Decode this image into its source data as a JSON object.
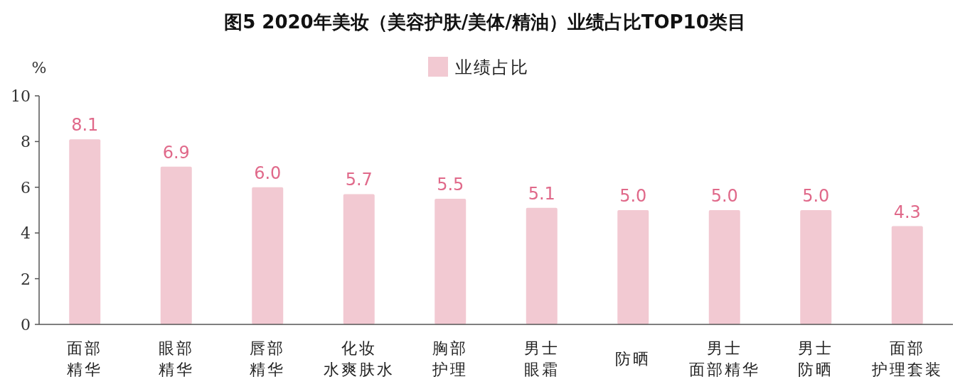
{
  "chart_data": {
    "type": "bar",
    "title": "图5 2020年美妆（美容护肤/美体/精油）业绩占比TOP10类目",
    "ylabel": "%",
    "categories": [
      "面部精华",
      "眼部精华",
      "唇部精华",
      "化妆水爽肤水",
      "胸部护理",
      "男士眼霜",
      "防晒",
      "男士面部精华",
      "男士防晒",
      "面部护理套装"
    ],
    "series": [
      {
        "name": "业绩占比",
        "color": "#f2c9d2",
        "values": [
          8.1,
          6.9,
          6.0,
          5.7,
          5.5,
          5.1,
          5.0,
          5.0,
          5.0,
          4.3
        ]
      }
    ],
    "ylim": [
      0,
      10
    ],
    "yticks": [
      0,
      2,
      4,
      6,
      8,
      10
    ],
    "value_labels": [
      "8.1",
      "6.9",
      "6.0",
      "5.7",
      "5.5",
      "5.1",
      "5.0",
      "5.0",
      "5.0",
      "4.3"
    ],
    "legend": "top",
    "grid": false
  }
}
